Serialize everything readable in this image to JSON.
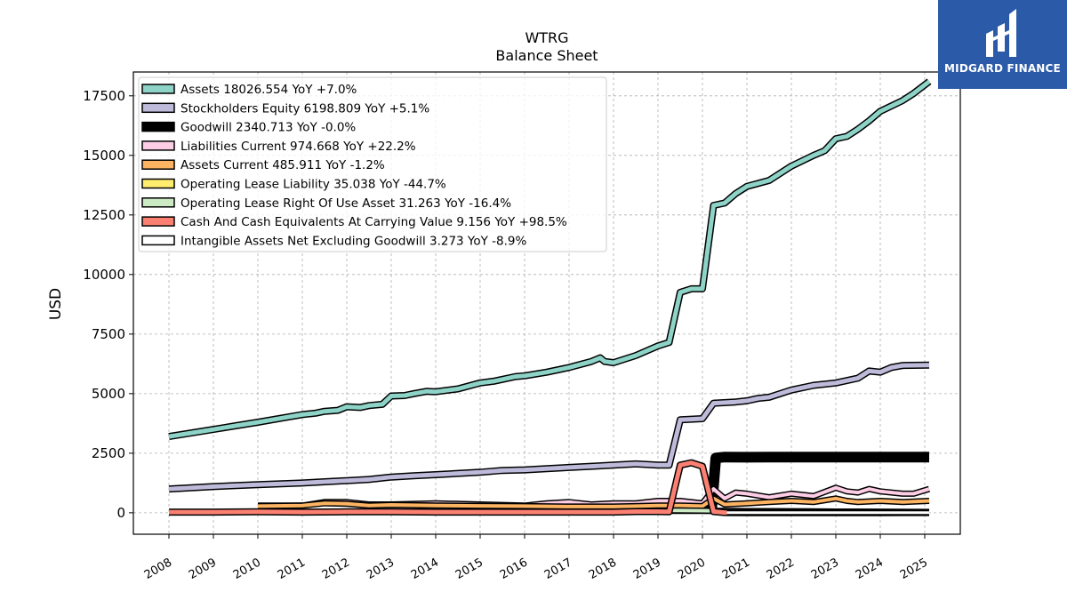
{
  "chart_data": {
    "type": "line",
    "title": "WTRG",
    "subtitle": "Balance  Sheet",
    "xlabel": "",
    "ylabel": "USD",
    "ylim": [
      -900,
      18500
    ],
    "xlim": [
      2007.2,
      2025.8
    ],
    "yticks": [
      0,
      2500,
      5000,
      7500,
      10000,
      12500,
      15000,
      17500
    ],
    "xticks": [
      2008,
      2009,
      2010,
      2011,
      2012,
      2013,
      2014,
      2015,
      2016,
      2017,
      2018,
      2019,
      2020,
      2021,
      2022,
      2023,
      2024,
      2025
    ],
    "grid": true,
    "legend_position": "top-left",
    "series": [
      {
        "name": "Assets",
        "legend": "Assets  18026.554 YoY +7.0%",
        "color": "#8dd3c7",
        "width": 5,
        "points": [
          [
            2008.0,
            3200
          ],
          [
            2008.5,
            3350
          ],
          [
            2009.0,
            3500
          ],
          [
            2009.5,
            3650
          ],
          [
            2010.0,
            3800
          ],
          [
            2010.5,
            3960
          ],
          [
            2011.0,
            4120
          ],
          [
            2011.3,
            4180
          ],
          [
            2011.5,
            4260
          ],
          [
            2011.8,
            4300
          ],
          [
            2012.0,
            4450
          ],
          [
            2012.3,
            4420
          ],
          [
            2012.5,
            4500
          ],
          [
            2012.8,
            4550
          ],
          [
            2013.0,
            4900
          ],
          [
            2013.3,
            4920
          ],
          [
            2013.5,
            5000
          ],
          [
            2013.8,
            5100
          ],
          [
            2014.0,
            5080
          ],
          [
            2014.5,
            5200
          ],
          [
            2015.0,
            5450
          ],
          [
            2015.3,
            5520
          ],
          [
            2015.5,
            5600
          ],
          [
            2015.8,
            5720
          ],
          [
            2016.0,
            5750
          ],
          [
            2016.5,
            5900
          ],
          [
            2017.0,
            6100
          ],
          [
            2017.5,
            6350
          ],
          [
            2017.7,
            6500
          ],
          [
            2017.8,
            6350
          ],
          [
            2018.0,
            6300
          ],
          [
            2018.5,
            6600
          ],
          [
            2019.0,
            7000
          ],
          [
            2019.25,
            7150
          ],
          [
            2019.5,
            9250
          ],
          [
            2019.75,
            9400
          ],
          [
            2020.0,
            9400
          ],
          [
            2020.25,
            12900
          ],
          [
            2020.5,
            13000
          ],
          [
            2020.75,
            13400
          ],
          [
            2021.0,
            13700
          ],
          [
            2021.5,
            13950
          ],
          [
            2022.0,
            14550
          ],
          [
            2022.5,
            15000
          ],
          [
            2022.75,
            15200
          ],
          [
            2023.0,
            15700
          ],
          [
            2023.25,
            15800
          ],
          [
            2023.5,
            16100
          ],
          [
            2023.75,
            16450
          ],
          [
            2024.0,
            16850
          ],
          [
            2024.5,
            17300
          ],
          [
            2024.75,
            17600
          ],
          [
            2025.1,
            18100
          ]
        ]
      },
      {
        "name": "Stockholders Equity",
        "legend": "Stockholders Equity  6198.809 YoY +5.1%",
        "color": "#bebada",
        "width": 5,
        "points": [
          [
            2008.0,
            1000
          ],
          [
            2009.0,
            1100
          ],
          [
            2010.0,
            1180
          ],
          [
            2011.0,
            1250
          ],
          [
            2011.5,
            1300
          ],
          [
            2012.0,
            1350
          ],
          [
            2012.5,
            1400
          ],
          [
            2013.0,
            1500
          ],
          [
            2013.5,
            1550
          ],
          [
            2014.0,
            1600
          ],
          [
            2015.0,
            1700
          ],
          [
            2015.5,
            1780
          ],
          [
            2016.0,
            1800
          ],
          [
            2016.5,
            1850
          ],
          [
            2017.0,
            1900
          ],
          [
            2017.5,
            1950
          ],
          [
            2018.0,
            2000
          ],
          [
            2018.5,
            2050
          ],
          [
            2019.0,
            2000
          ],
          [
            2019.25,
            2000
          ],
          [
            2019.5,
            3900
          ],
          [
            2020.0,
            3950
          ],
          [
            2020.25,
            4600
          ],
          [
            2020.75,
            4650
          ],
          [
            2021.0,
            4700
          ],
          [
            2021.25,
            4800
          ],
          [
            2021.5,
            4850
          ],
          [
            2022.0,
            5150
          ],
          [
            2022.5,
            5350
          ],
          [
            2023.0,
            5450
          ],
          [
            2023.5,
            5650
          ],
          [
            2023.75,
            5950
          ],
          [
            2024.0,
            5900
          ],
          [
            2024.25,
            6100
          ],
          [
            2024.5,
            6180
          ],
          [
            2025.1,
            6200
          ]
        ]
      },
      {
        "name": "Goodwill",
        "legend": "Goodwill  2340.713 YoY -0.0%",
        "color": "#000000",
        "width": 9,
        "points": [
          [
            2020.2,
            0
          ],
          [
            2020.3,
            2300
          ],
          [
            2020.5,
            2340
          ],
          [
            2021.0,
            2330
          ],
          [
            2021.5,
            2340
          ],
          [
            2022.0,
            2340
          ],
          [
            2023.0,
            2340
          ],
          [
            2024.0,
            2340
          ],
          [
            2025.1,
            2340
          ]
        ]
      },
      {
        "name": "Liabilities Current",
        "legend": "Liabilities Current  974.668 YoY +22.2%",
        "color": "#fccde5",
        "width": 4,
        "points": [
          [
            2010.0,
            300
          ],
          [
            2011.0,
            300
          ],
          [
            2011.5,
            450
          ],
          [
            2012.0,
            450
          ],
          [
            2012.5,
            350
          ],
          [
            2013.0,
            350
          ],
          [
            2014.0,
            400
          ],
          [
            2015.0,
            350
          ],
          [
            2016.0,
            300
          ],
          [
            2016.5,
            400
          ],
          [
            2017.0,
            450
          ],
          [
            2017.5,
            350
          ],
          [
            2018.0,
            400
          ],
          [
            2018.5,
            400
          ],
          [
            2019.0,
            500
          ],
          [
            2019.5,
            500
          ],
          [
            2020.0,
            400
          ],
          [
            2020.25,
            1000
          ],
          [
            2020.5,
            600
          ],
          [
            2020.75,
            850
          ],
          [
            2021.0,
            800
          ],
          [
            2021.5,
            650
          ],
          [
            2022.0,
            800
          ],
          [
            2022.5,
            700
          ],
          [
            2023.0,
            1050
          ],
          [
            2023.25,
            900
          ],
          [
            2023.5,
            850
          ],
          [
            2023.75,
            1000
          ],
          [
            2024.0,
            900
          ],
          [
            2024.5,
            800
          ],
          [
            2024.75,
            800
          ],
          [
            2025.1,
            1000
          ]
        ]
      },
      {
        "name": "Assets Current",
        "legend": "Assets Current  485.911 YoY -1.2%",
        "color": "#fdb462",
        "width": 4,
        "points": [
          [
            2010.0,
            280
          ],
          [
            2011.0,
            300
          ],
          [
            2011.5,
            400
          ],
          [
            2012.0,
            380
          ],
          [
            2012.5,
            300
          ],
          [
            2013.0,
            330
          ],
          [
            2014.0,
            300
          ],
          [
            2015.0,
            290
          ],
          [
            2016.0,
            280
          ],
          [
            2017.0,
            260
          ],
          [
            2018.0,
            260
          ],
          [
            2018.5,
            280
          ],
          [
            2019.0,
            300
          ],
          [
            2019.5,
            300
          ],
          [
            2020.0,
            280
          ],
          [
            2020.25,
            600
          ],
          [
            2020.5,
            350
          ],
          [
            2021.0,
            400
          ],
          [
            2021.5,
            450
          ],
          [
            2022.0,
            500
          ],
          [
            2022.5,
            450
          ],
          [
            2023.0,
            600
          ],
          [
            2023.25,
            500
          ],
          [
            2023.5,
            450
          ],
          [
            2024.0,
            500
          ],
          [
            2024.5,
            450
          ],
          [
            2025.1,
            500
          ]
        ]
      },
      {
        "name": "Operating Lease Liability",
        "legend": "Operating Lease Liability  35.038 YoY -44.7%",
        "color": "#ffed6f",
        "width": 4,
        "points": [
          [
            2019.25,
            80
          ],
          [
            2020.0,
            80
          ],
          [
            2021.0,
            70
          ],
          [
            2022.0,
            60
          ],
          [
            2023.0,
            50
          ],
          [
            2024.0,
            40
          ],
          [
            2025.1,
            35
          ]
        ]
      },
      {
        "name": "Operating Lease Right Of Use Asset",
        "legend": "Operating Lease Right Of Use Asset  31.263 YoY -16.4%",
        "color": "#ccebc5",
        "width": 4,
        "points": [
          [
            2019.25,
            100
          ],
          [
            2020.0,
            90
          ],
          [
            2021.0,
            70
          ],
          [
            2022.0,
            60
          ],
          [
            2023.0,
            50
          ],
          [
            2024.0,
            40
          ],
          [
            2025.1,
            31
          ]
        ]
      },
      {
        "name": "Cash And Cash Equivalents At Carrying Value",
        "legend": "Cash And Cash Equivalents At Carrying Value  9.156 YoY +98.5%",
        "color": "#fb8072",
        "width": 5,
        "points": [
          [
            2008.0,
            30
          ],
          [
            2009.0,
            30
          ],
          [
            2010.0,
            40
          ],
          [
            2011.0,
            30
          ],
          [
            2012.0,
            40
          ],
          [
            2013.0,
            40
          ],
          [
            2014.0,
            30
          ],
          [
            2015.0,
            30
          ],
          [
            2016.0,
            30
          ],
          [
            2017.0,
            30
          ],
          [
            2018.0,
            30
          ],
          [
            2018.5,
            50
          ],
          [
            2019.0,
            50
          ],
          [
            2019.25,
            40
          ],
          [
            2019.5,
            2000
          ],
          [
            2019.75,
            2100
          ],
          [
            2020.0,
            1950
          ],
          [
            2020.25,
            50
          ],
          [
            2020.5,
            10
          ],
          [
            2021.0,
            5
          ],
          [
            2022.0,
            5
          ],
          [
            2023.0,
            5
          ],
          [
            2024.0,
            5
          ],
          [
            2025.1,
            9
          ]
        ]
      },
      {
        "name": "Intangible Assets Net Excluding Goodwill",
        "legend": "Intangible Assets Net Excluding Goodwill  3.273 YoY -8.9%",
        "color": "#ffffff",
        "width": 3,
        "points": [
          [
            2020.55,
            5
          ],
          [
            2021.0,
            4
          ],
          [
            2022.0,
            4
          ],
          [
            2023.0,
            4
          ],
          [
            2024.0,
            3
          ],
          [
            2025.1,
            3
          ]
        ]
      }
    ]
  },
  "logo": {
    "brand": "MIDGARD FINANCE",
    "color": "#2b5aa8"
  }
}
